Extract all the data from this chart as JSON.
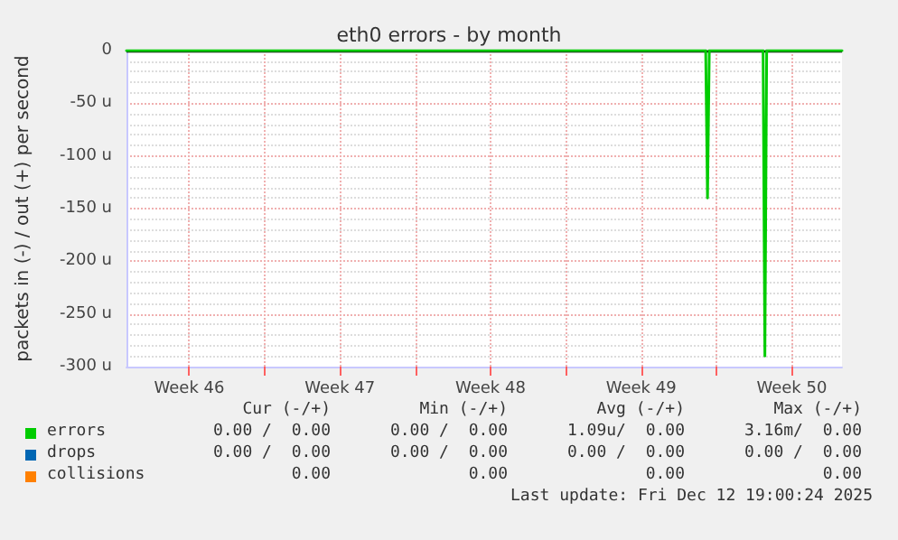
{
  "chart_data": {
    "type": "line",
    "title": "eth0 errors - by month",
    "ylabel": "packets in (-) / out (+) per second",
    "xlim": [
      "2025-11-10T14:00",
      "2025-12-13T20:00"
    ],
    "xticks": [
      {
        "value": "2025-11-13T12:00",
        "label": "Week 46"
      },
      {
        "value": "2025-11-17",
        "label": null
      },
      {
        "value": "2025-11-20T12:00",
        "label": "Week 47"
      },
      {
        "value": "2025-11-24",
        "label": null
      },
      {
        "value": "2025-11-27T12:00",
        "label": "Week 48"
      },
      {
        "value": "2025-12-01",
        "label": null
      },
      {
        "value": "2025-12-04T12:00",
        "label": "Week 49"
      },
      {
        "value": "2025-12-08",
        "label": null
      },
      {
        "value": "2025-12-11T12:00",
        "label": "Week 50"
      }
    ],
    "ylim": [
      -300,
      0
    ],
    "yticks": [
      {
        "value": -300,
        "label": "-300 u"
      },
      {
        "value": -250,
        "label": "-250 u"
      },
      {
        "value": -200,
        "label": "-200 u"
      },
      {
        "value": -150,
        "label": "-150 u"
      },
      {
        "value": -100,
        "label": "-100 u"
      },
      {
        "value": -50,
        "label": "-50 u"
      },
      0
    ],
    "grid": true,
    "legend": "bottom",
    "marker": "none",
    "ref_lines": [
      {
        "axis": "y",
        "value": 0,
        "label": null,
        "color": "#000000"
      }
    ],
    "series": [
      {
        "name": "errors",
        "color": "#00cc00",
        "x": [
          "2025-11-10T14:00",
          "2025-12-07T12:00",
          "2025-12-07T14:00",
          "2025-12-07T16:00",
          "2025-12-10T04:00",
          "2025-12-10T06:00",
          "2025-12-10T08:00",
          "2025-12-13T20:00"
        ],
        "values": [
          0,
          0,
          -140,
          0,
          0,
          -290,
          0,
          0
        ]
      },
      {
        "name": "drops",
        "color": "#0066b3"
      },
      {
        "name": "collisions",
        "color": "#ff8000"
      }
    ],
    "annotations": [
      "Cur (-/+)",
      "Min (-/+)",
      "Avg (-/+)",
      "Max (-/+)",
      "0.00 /  0.00",
      "0.00 /  0.00",
      "1.09u/  0.00",
      "3.16m/  0.00",
      "0.00 /  0.00",
      "0.00 /  0.00",
      "0.00 /  0.00",
      "0.00 /  0.00",
      "0.00",
      "0.00",
      "0.00",
      "0.00",
      "Last update: Fri Dec 12 19:00:24 2025"
    ]
  }
}
